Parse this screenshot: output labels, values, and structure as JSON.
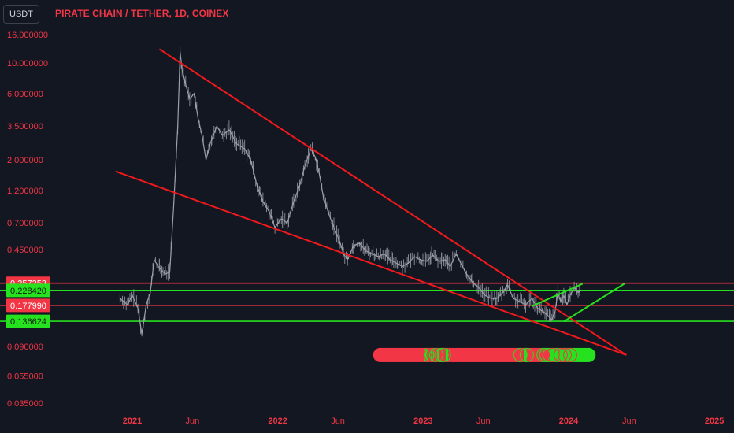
{
  "header": {
    "currency_label": "USDT",
    "title": "PIRATE CHAIN / TETHER, 1D, COINEX"
  },
  "colors": {
    "background": "#131722",
    "red": "#f23645",
    "trendline_red": "#f0191c",
    "green": "#26e21e",
    "price_line": "#9c9fa8",
    "text_red": "#f23645"
  },
  "chart_data": {
    "type": "line",
    "title": "PIRATE CHAIN / TETHER, 1D, COINEX",
    "y_scale": "log",
    "ylim": [
      0.03,
      16
    ],
    "xlim": [
      "2020-11-05",
      "2025-03-20"
    ],
    "x_ticks": [
      {
        "date": "2021-01-01",
        "label": "2021"
      },
      {
        "date": "2021-06-01",
        "label": "Jun"
      },
      {
        "date": "2022-01-01",
        "label": "2022"
      },
      {
        "date": "2022-06-01",
        "label": "Jun"
      },
      {
        "date": "2023-01-01",
        "label": "2023"
      },
      {
        "date": "2023-06-01",
        "label": "Jun"
      },
      {
        "date": "2024-01-01",
        "label": "2024"
      },
      {
        "date": "2024-06-01",
        "label": "Jun"
      },
      {
        "date": "2025-01-01",
        "label": "2025"
      }
    ],
    "y_ticks": [
      {
        "value": 16.0,
        "label": "16.000000"
      },
      {
        "value": 10.0,
        "label": "10.000000"
      },
      {
        "value": 6.0,
        "label": "6.000000"
      },
      {
        "value": 3.5,
        "label": "3.500000"
      },
      {
        "value": 2.0,
        "label": "2.000000"
      },
      {
        "value": 1.2,
        "label": "1.200000"
      },
      {
        "value": 0.7,
        "label": "0.700000"
      },
      {
        "value": 0.45,
        "label": "0.450000"
      },
      {
        "value": 0.09,
        "label": "0.090000"
      },
      {
        "value": 0.055,
        "label": "0.055000"
      },
      {
        "value": 0.035,
        "label": "0.035000"
      }
    ],
    "series": [
      {
        "values": [
          [
            "2020-12-01",
            0.2
          ],
          [
            "2020-12-10",
            0.19
          ],
          [
            "2020-12-20",
            0.18
          ],
          [
            "2021-01-01",
            0.21
          ],
          [
            "2021-01-15",
            0.17
          ],
          [
            "2021-01-25",
            0.11
          ],
          [
            "2021-02-05",
            0.18
          ],
          [
            "2021-02-15",
            0.22
          ],
          [
            "2021-02-25",
            0.38
          ],
          [
            "2021-03-10",
            0.33
          ],
          [
            "2021-03-25",
            0.3
          ],
          [
            "2021-04-05",
            0.31
          ],
          [
            "2021-04-15",
            0.95
          ],
          [
            "2021-04-25",
            3.5
          ],
          [
            "2021-05-01",
            12.0
          ],
          [
            "2021-05-06",
            9.0
          ],
          [
            "2021-05-15",
            7.0
          ],
          [
            "2021-05-25",
            5.5
          ],
          [
            "2021-06-05",
            6.0
          ],
          [
            "2021-06-15",
            4.0
          ],
          [
            "2021-06-25",
            3.0
          ],
          [
            "2021-07-05",
            2.0
          ],
          [
            "2021-07-15",
            2.6
          ],
          [
            "2021-08-01",
            3.5
          ],
          [
            "2021-08-15",
            3.0
          ],
          [
            "2021-09-01",
            3.3
          ],
          [
            "2021-09-20",
            2.6
          ],
          [
            "2021-10-10",
            2.4
          ],
          [
            "2021-10-25",
            2.0
          ],
          [
            "2021-11-10",
            1.3
          ],
          [
            "2021-11-25",
            1.0
          ],
          [
            "2021-12-10",
            0.85
          ],
          [
            "2021-12-25",
            0.65
          ],
          [
            "2022-01-10",
            0.75
          ],
          [
            "2022-01-25",
            0.7
          ],
          [
            "2022-02-10",
            1.0
          ],
          [
            "2022-02-25",
            1.3
          ],
          [
            "2022-03-10",
            1.8
          ],
          [
            "2022-03-25",
            2.4
          ],
          [
            "2022-04-05",
            2.1
          ],
          [
            "2022-04-15",
            1.6
          ],
          [
            "2022-04-25",
            1.1
          ],
          [
            "2022-05-10",
            0.8
          ],
          [
            "2022-05-25",
            0.62
          ],
          [
            "2022-06-05",
            0.52
          ],
          [
            "2022-06-15",
            0.42
          ],
          [
            "2022-06-25",
            0.38
          ],
          [
            "2022-07-10",
            0.48
          ],
          [
            "2022-07-25",
            0.5
          ],
          [
            "2022-08-10",
            0.44
          ],
          [
            "2022-08-25",
            0.42
          ],
          [
            "2022-09-10",
            0.4
          ],
          [
            "2022-09-25",
            0.42
          ],
          [
            "2022-10-10",
            0.38
          ],
          [
            "2022-10-25",
            0.36
          ],
          [
            "2022-11-10",
            0.34
          ],
          [
            "2022-11-25",
            0.36
          ],
          [
            "2022-12-10",
            0.4
          ],
          [
            "2022-12-25",
            0.38
          ],
          [
            "2023-01-10",
            0.37
          ],
          [
            "2023-01-25",
            0.41
          ],
          [
            "2023-02-10",
            0.37
          ],
          [
            "2023-02-25",
            0.38
          ],
          [
            "2023-03-10",
            0.34
          ],
          [
            "2023-03-25",
            0.42
          ],
          [
            "2023-04-05",
            0.36
          ],
          [
            "2023-04-20",
            0.3
          ],
          [
            "2023-05-05",
            0.26
          ],
          [
            "2023-05-20",
            0.24
          ],
          [
            "2023-06-05",
            0.21
          ],
          [
            "2023-06-20",
            0.2
          ],
          [
            "2023-07-05",
            0.2
          ],
          [
            "2023-07-20",
            0.22
          ],
          [
            "2023-08-01",
            0.25
          ],
          [
            "2023-08-15",
            0.2
          ],
          [
            "2023-08-30",
            0.19
          ],
          [
            "2023-09-15",
            0.18
          ],
          [
            "2023-10-01",
            0.2
          ],
          [
            "2023-10-15",
            0.17
          ],
          [
            "2023-10-30",
            0.16
          ],
          [
            "2023-11-10",
            0.15
          ],
          [
            "2023-11-20",
            0.14
          ],
          [
            "2023-11-28",
            0.16
          ],
          [
            "2023-12-05",
            0.22
          ],
          [
            "2023-12-12",
            0.19
          ],
          [
            "2023-12-20",
            0.21
          ],
          [
            "2023-12-28",
            0.18
          ],
          [
            "2024-01-05",
            0.21
          ],
          [
            "2024-01-15",
            0.24
          ],
          [
            "2024-01-25",
            0.22
          ],
          [
            "2024-02-01",
            0.23
          ]
        ]
      }
    ],
    "trendlines": [
      {
        "color": "red",
        "from": [
          "2021-03-10",
          12.6
        ],
        "to": [
          "2024-05-25",
          0.078
        ]
      },
      {
        "color": "red",
        "from": [
          "2020-11-20",
          1.65
        ],
        "to": [
          "2024-05-25",
          0.078
        ]
      },
      {
        "color": "green",
        "from": [
          "2023-09-30",
          0.175
        ],
        "to": [
          "2024-02-05",
          0.255
        ]
      },
      {
        "color": "green",
        "from": [
          "2023-12-20",
          0.136
        ],
        "to": [
          "2024-05-20",
          0.255
        ]
      }
    ],
    "horizontal_levels": [
      {
        "value": 0.257253,
        "label": "0.257253",
        "color": "red"
      },
      {
        "value": 0.22842,
        "label": "0.228420",
        "color": "green"
      },
      {
        "value": 0.17799,
        "label": "0.177990",
        "color": "red"
      },
      {
        "value": 0.136624,
        "label": "0.136624",
        "color": "green"
      }
    ],
    "signal_strip": {
      "value": 0.078,
      "from": "2022-09-15",
      "to": "2024-02-20",
      "segments": [
        {
          "from": "2022-09-15",
          "to": "2023-01-03",
          "color": "red"
        },
        {
          "from": "2023-01-03",
          "to": "2023-01-15",
          "color": "green"
        },
        {
          "from": "2023-01-15",
          "to": "2023-01-20",
          "color": "red"
        },
        {
          "from": "2023-01-20",
          "to": "2023-01-28",
          "color": "green"
        },
        {
          "from": "2023-01-28",
          "to": "2023-02-05",
          "color": "red"
        },
        {
          "from": "2023-02-05",
          "to": "2023-02-12",
          "color": "green"
        },
        {
          "from": "2023-02-12",
          "to": "2023-02-26",
          "color": "red"
        },
        {
          "from": "2023-02-26",
          "to": "2023-03-05",
          "color": "green"
        },
        {
          "from": "2023-03-05",
          "to": "2023-09-10",
          "color": "red"
        },
        {
          "from": "2023-09-10",
          "to": "2023-09-18",
          "color": "green"
        },
        {
          "from": "2023-09-18",
          "to": "2023-11-15",
          "color": "red"
        },
        {
          "from": "2023-11-15",
          "to": "2024-02-20",
          "color": "green"
        }
      ],
      "circle_marks": [
        "2023-01-08",
        "2023-01-20",
        "2023-01-27",
        "2023-02-03",
        "2023-02-08",
        "2023-02-16",
        "2023-02-22",
        "2023-03-01",
        "2023-09-02",
        "2023-09-10",
        "2023-09-18",
        "2023-10-30",
        "2023-11-06",
        "2023-11-14",
        "2023-11-22",
        "2023-12-12",
        "2023-12-22",
        "2024-01-05"
      ]
    }
  }
}
